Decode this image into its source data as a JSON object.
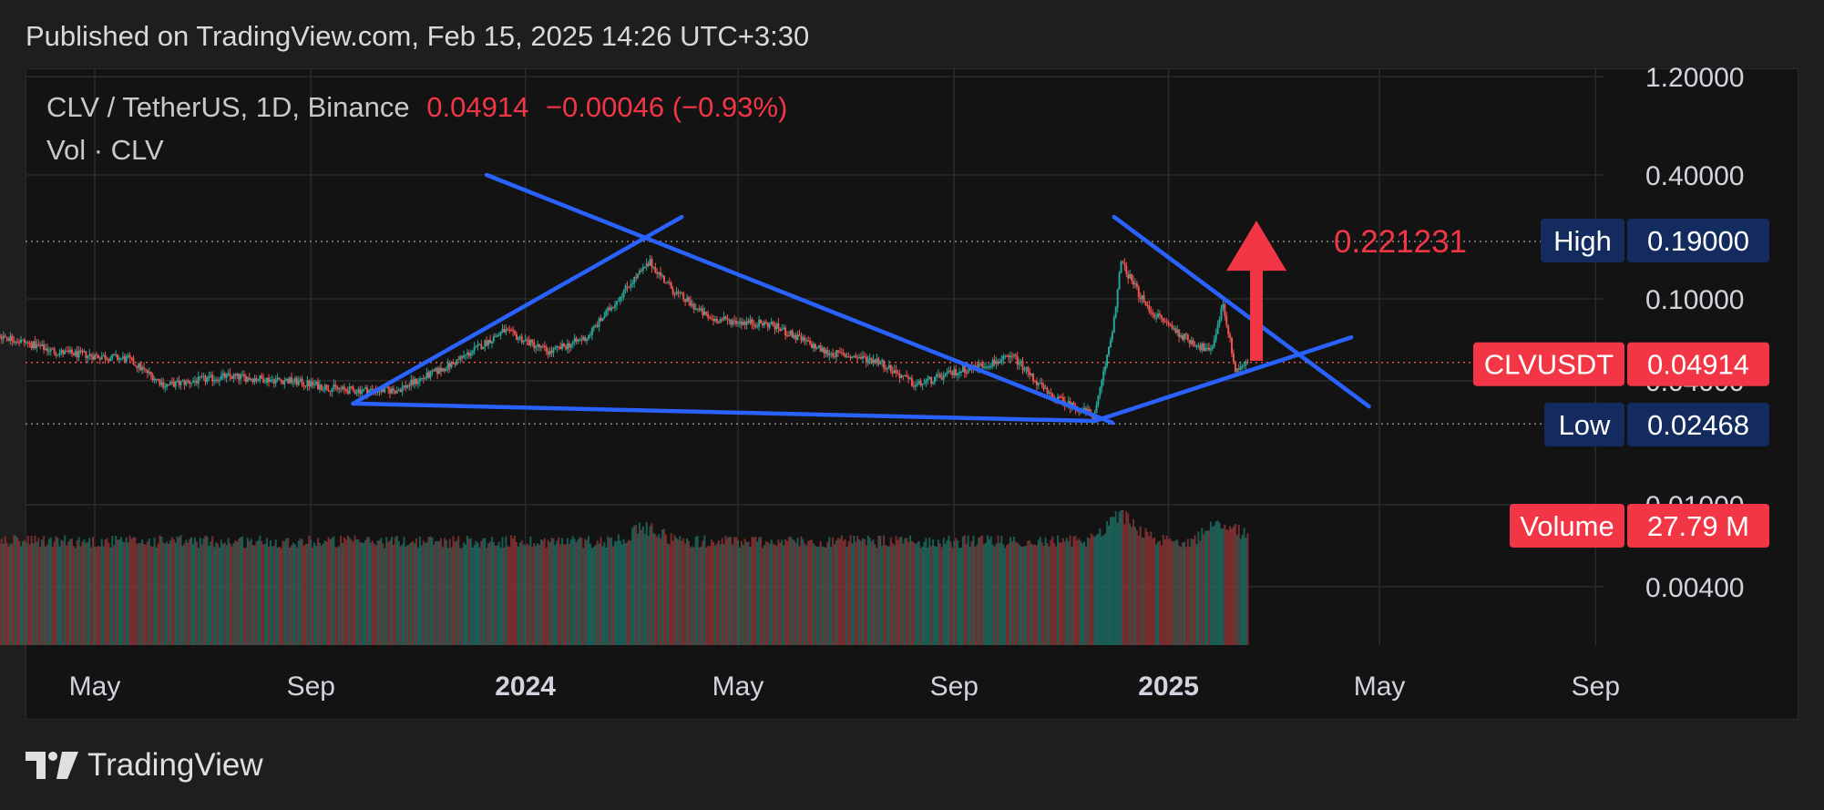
{
  "header": {
    "published": "Published on TradingView.com, Feb 15, 2025 14:26 UTC+3:30"
  },
  "legend": {
    "symbol": "CLV / TetherUS, 1D, Binance",
    "price": "0.04914",
    "change": "−0.00046 (−0.93%)",
    "volume_label": "Vol · CLV"
  },
  "footer": {
    "brand": "TradingView"
  },
  "colors": {
    "up": "#26a69a",
    "down": "#ef5350",
    "trendline": "#2962ff",
    "arrow": "#f23645",
    "label_navy": "#132b5e",
    "label_red": "#f23645"
  },
  "chart_data": {
    "type": "candlestick",
    "scale": "log",
    "price_axis_ticks": [
      {
        "value": 1.2,
        "label": "1.20000"
      },
      {
        "value": 0.4,
        "label": "0.40000"
      },
      {
        "value": 0.1,
        "label": "0.10000"
      },
      {
        "value": 0.04,
        "label": "0.04000"
      },
      {
        "value": 0.01,
        "label": "0.01000"
      },
      {
        "value": 0.004,
        "label": "0.00400"
      }
    ],
    "time_axis_ticks": [
      {
        "date": "2023-05-01",
        "label": "May",
        "bold": false
      },
      {
        "date": "2023-09-01",
        "label": "Sep",
        "bold": false
      },
      {
        "date": "2024-01-01",
        "label": "2024",
        "bold": true
      },
      {
        "date": "2024-05-01",
        "label": "May",
        "bold": false
      },
      {
        "date": "2024-09-01",
        "label": "Sep",
        "bold": false
      },
      {
        "date": "2025-01-01",
        "label": "2025",
        "bold": true
      },
      {
        "date": "2025-05-01",
        "label": "May",
        "bold": false
      },
      {
        "date": "2025-09-01",
        "label": "Sep",
        "bold": false
      }
    ],
    "price_keypoints": [
      {
        "date": "2023-02-01",
        "price": 0.064
      },
      {
        "date": "2023-03-10",
        "price": 0.066
      },
      {
        "date": "2023-04-10",
        "price": 0.055
      },
      {
        "date": "2023-05-20",
        "price": 0.051
      },
      {
        "date": "2023-06-10",
        "price": 0.038
      },
      {
        "date": "2023-07-15",
        "price": 0.042
      },
      {
        "date": "2023-08-20",
        "price": 0.04
      },
      {
        "date": "2023-09-20",
        "price": 0.036
      },
      {
        "date": "2023-10-20",
        "price": 0.036
      },
      {
        "date": "2023-11-20",
        "price": 0.048
      },
      {
        "date": "2023-12-20",
        "price": 0.07
      },
      {
        "date": "2024-01-15",
        "price": 0.055
      },
      {
        "date": "2024-02-05",
        "price": 0.065
      },
      {
        "date": "2024-03-01",
        "price": 0.12
      },
      {
        "date": "2024-03-12",
        "price": 0.15
      },
      {
        "date": "2024-03-25",
        "price": 0.11
      },
      {
        "date": "2024-04-15",
        "price": 0.08
      },
      {
        "date": "2024-05-20",
        "price": 0.075
      },
      {
        "date": "2024-06-20",
        "price": 0.055
      },
      {
        "date": "2024-07-20",
        "price": 0.05
      },
      {
        "date": "2024-08-10",
        "price": 0.038
      },
      {
        "date": "2024-09-05",
        "price": 0.045
      },
      {
        "date": "2024-10-05",
        "price": 0.052
      },
      {
        "date": "2024-10-25",
        "price": 0.034
      },
      {
        "date": "2024-11-20",
        "price": 0.027
      },
      {
        "date": "2024-11-30",
        "price": 0.07
      },
      {
        "date": "2024-12-05",
        "price": 0.15
      },
      {
        "date": "2024-12-20",
        "price": 0.09
      },
      {
        "date": "2025-01-10",
        "price": 0.065
      },
      {
        "date": "2025-01-25",
        "price": 0.055
      },
      {
        "date": "2025-02-01",
        "price": 0.095
      },
      {
        "date": "2025-02-08",
        "price": 0.045
      },
      {
        "date": "2025-02-15",
        "price": 0.04914
      }
    ],
    "volume_baseline_fraction": 0.8,
    "volume_keypoints": [
      {
        "date": "2024-03-10",
        "fraction": 0.9
      },
      {
        "date": "2024-12-05",
        "fraction": 1.0
      },
      {
        "date": "2025-02-01",
        "fraction": 0.95
      }
    ],
    "trendlines": [
      {
        "p1": {
          "date": "2023-09-25",
          "price": 0.031
        },
        "p2": {
          "date": "2024-03-30",
          "price": 0.25
        }
      },
      {
        "p1": {
          "date": "2023-12-10",
          "price": 0.4
        },
        "p2": {
          "date": "2024-11-30",
          "price": 0.025
        }
      },
      {
        "p1": {
          "date": "2023-09-25",
          "price": 0.031
        },
        "p2": {
          "date": "2024-11-20",
          "price": 0.0255
        }
      },
      {
        "p1": {
          "date": "2024-11-20",
          "price": 0.0255
        },
        "p2": {
          "date": "2025-04-15",
          "price": 0.065
        }
      },
      {
        "p1": {
          "date": "2024-12-01",
          "price": 0.25
        },
        "p2": {
          "date": "2025-04-25",
          "price": 0.03
        }
      }
    ],
    "reference_lines": {
      "high": 0.19,
      "low": 0.02468,
      "last": 0.04914
    },
    "annotation": {
      "text": "0.221231",
      "arrow_date": "2025-02-20",
      "arrow_from": 0.05,
      "arrow_to": 0.24
    },
    "price_labels": {
      "high": {
        "name": "High",
        "value": "0.19000"
      },
      "last": {
        "name": "CLVUSDT",
        "value": "0.04914"
      },
      "low": {
        "name": "Low",
        "value": "0.02468"
      },
      "volume": {
        "name": "Volume",
        "value": "27.79 M"
      }
    }
  }
}
